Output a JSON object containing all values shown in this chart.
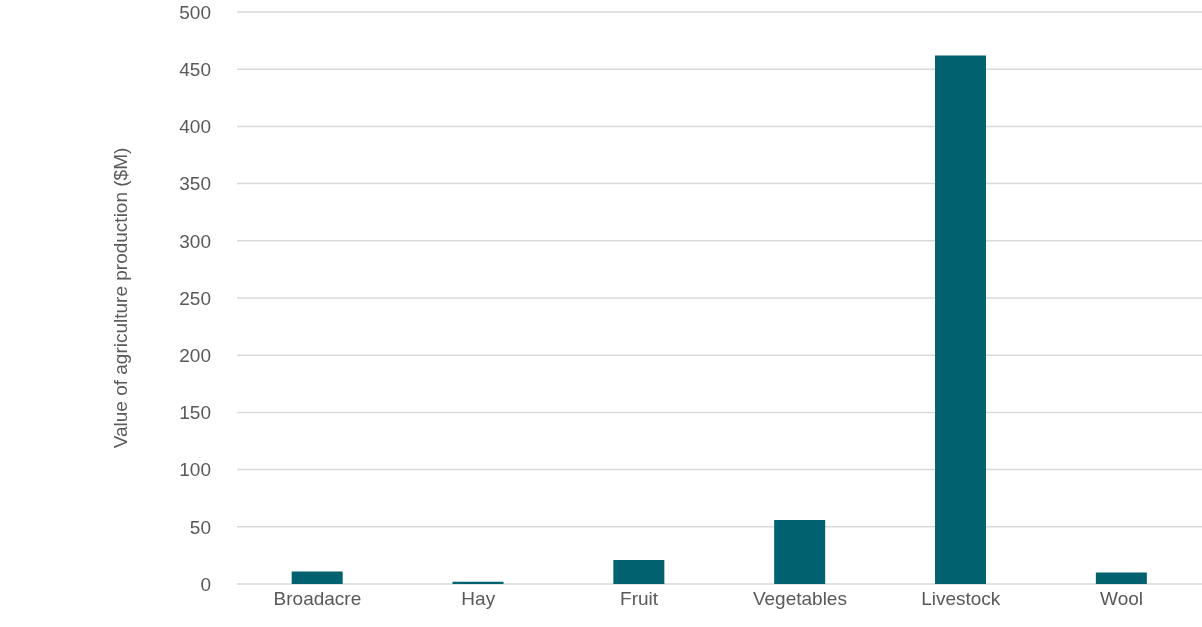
{
  "chart_data": {
    "type": "bar",
    "ylabel": "Value of agriculture production ($M)",
    "categories": [
      "Broadacre",
      "Hay",
      "Fruit",
      "Vegetables",
      "Livestock",
      "Wool"
    ],
    "values": [
      11,
      2,
      21,
      56,
      462,
      10
    ],
    "color": "#00626f",
    "ylim": [
      0,
      500
    ],
    "yticks": [
      0,
      50,
      100,
      150,
      200,
      250,
      300,
      350,
      400,
      450,
      500
    ],
    "grid": "y",
    "legend": false
  }
}
